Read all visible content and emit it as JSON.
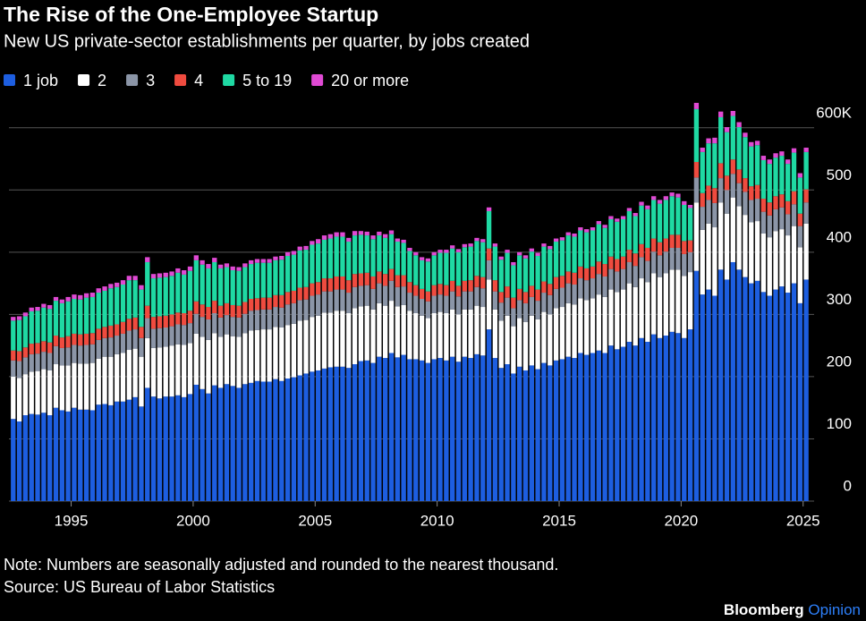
{
  "chart_data": {
    "type": "bar",
    "stacked": true,
    "title": "The Rise of the One-Employee Startup",
    "subtitle": "New US private-sector establishments per quarter, by jobs created",
    "note": "Note: Numbers are seasonally adjusted and rounded to the nearest thousand.",
    "source": "Source: US Bureau of Labor Statistics",
    "brand": "Bloomberg",
    "brand_sub": "Opinion",
    "x": [
      1992.625,
      1992.875,
      1993.125,
      1993.375,
      1993.625,
      1993.875,
      1994.125,
      1994.375,
      1994.625,
      1994.875,
      1995.125,
      1995.375,
      1995.625,
      1995.875,
      1996.125,
      1996.375,
      1996.625,
      1996.875,
      1997.125,
      1997.375,
      1997.625,
      1997.875,
      1998.125,
      1998.375,
      1998.625,
      1998.875,
      1999.125,
      1999.375,
      1999.625,
      1999.875,
      2000.125,
      2000.375,
      2000.625,
      2000.875,
      2001.125,
      2001.375,
      2001.625,
      2001.875,
      2002.125,
      2002.375,
      2002.625,
      2002.875,
      2003.125,
      2003.375,
      2003.625,
      2003.875,
      2004.125,
      2004.375,
      2004.625,
      2004.875,
      2005.125,
      2005.375,
      2005.625,
      2005.875,
      2006.125,
      2006.375,
      2006.625,
      2006.875,
      2007.125,
      2007.375,
      2007.625,
      2007.875,
      2008.125,
      2008.375,
      2008.625,
      2008.875,
      2009.125,
      2009.375,
      2009.625,
      2009.875,
      2010.125,
      2010.375,
      2010.625,
      2010.875,
      2011.125,
      2011.375,
      2011.625,
      2011.875,
      2012.125,
      2012.375,
      2012.625,
      2012.875,
      2013.125,
      2013.375,
      2013.625,
      2013.875,
      2014.125,
      2014.375,
      2014.625,
      2014.875,
      2015.125,
      2015.375,
      2015.625,
      2015.875,
      2016.125,
      2016.375,
      2016.625,
      2016.875,
      2017.125,
      2017.375,
      2017.625,
      2017.875,
      2018.125,
      2018.375,
      2018.625,
      2018.875,
      2019.125,
      2019.375,
      2019.625,
      2019.875,
      2020.125,
      2020.375,
      2020.625,
      2020.875,
      2021.125,
      2021.375,
      2021.625,
      2021.875,
      2022.125,
      2022.375,
      2022.625,
      2022.875,
      2023.125,
      2023.375,
      2023.625,
      2023.875,
      2024.125,
      2024.375,
      2024.625,
      2024.875,
      2025.125
    ],
    "xlim": [
      1992.45,
      2025.45
    ],
    "xticks": [
      1995,
      2000,
      2005,
      2010,
      2015,
      2020,
      2025
    ],
    "ylim": [
      0,
      650
    ],
    "yticks": [
      0,
      100,
      200,
      300,
      400,
      500,
      {
        "value": 600,
        "label": "600K"
      }
    ],
    "grid": true,
    "legend": "top-left",
    "series": [
      {
        "name": "1 job",
        "color": "#1d5ee0",
        "values": [
          132,
          128,
          138,
          140,
          139,
          142,
          138,
          150,
          146,
          144,
          150,
          147,
          147,
          146,
          155,
          156,
          154,
          160,
          160,
          163,
          167,
          152,
          182,
          168,
          165,
          168,
          168,
          170,
          167,
          172,
          187,
          180,
          173,
          186,
          182,
          188,
          185,
          182,
          188,
          190,
          193,
          192,
          192,
          196,
          193,
          197,
          199,
          202,
          205,
          208,
          210,
          213,
          215,
          216,
          216,
          214,
          220,
          225,
          226,
          222,
          232,
          230,
          238,
          231,
          235,
          228,
          228,
          226,
          222,
          228,
          230,
          226,
          232,
          224,
          232,
          230,
          236,
          234,
          276,
          230,
          214,
          220,
          205,
          216,
          210,
          218,
          212,
          222,
          218,
          226,
          228,
          232,
          230,
          238,
          235,
          238,
          242,
          238,
          250,
          244,
          248,
          256,
          250,
          262,
          256,
          268,
          262,
          266,
          272,
          270,
          262,
          276,
          370,
          332,
          340,
          330,
          372,
          356,
          384,
          372,
          360,
          350,
          354,
          336,
          330,
          340,
          345,
          335,
          350,
          318,
          356
        ]
      },
      {
        "name": "2",
        "color": "#ffffff",
        "values": [
          68,
          70,
          66,
          68,
          70,
          70,
          72,
          70,
          72,
          74,
          72,
          74,
          74,
          76,
          74,
          76,
          78,
          76,
          78,
          80,
          78,
          80,
          80,
          78,
          82,
          80,
          82,
          82,
          84,
          82,
          82,
          84,
          86,
          84,
          82,
          80,
          80,
          82,
          82,
          84,
          82,
          84,
          84,
          84,
          86,
          86,
          86,
          88,
          86,
          88,
          88,
          90,
          88,
          90,
          90,
          88,
          90,
          88,
          88,
          86,
          86,
          84,
          84,
          82,
          80,
          78,
          74,
          72,
          72,
          74,
          74,
          76,
          76,
          76,
          76,
          78,
          78,
          78,
          80,
          78,
          76,
          78,
          76,
          78,
          78,
          80,
          80,
          82,
          82,
          84,
          84,
          86,
          86,
          88,
          88,
          88,
          90,
          90,
          90,
          92,
          92,
          94,
          94,
          96,
          96,
          98,
          98,
          100,
          100,
          102,
          100,
          92,
          110,
          104,
          106,
          110,
          108,
          106,
          104,
          102,
          100,
          98,
          96,
          94,
          94,
          94,
          92,
          92,
          92,
          90,
          90
        ]
      },
      {
        "name": "3",
        "color": "#8b95a7",
        "values": [
          26,
          27,
          27,
          28,
          28,
          28,
          28,
          29,
          28,
          29,
          29,
          29,
          30,
          30,
          30,
          30,
          31,
          30,
          31,
          31,
          31,
          30,
          32,
          31,
          31,
          31,
          31,
          32,
          32,
          32,
          32,
          32,
          33,
          32,
          31,
          31,
          31,
          31,
          31,
          32,
          32,
          32,
          32,
          32,
          32,
          33,
          33,
          33,
          33,
          34,
          34,
          34,
          34,
          34,
          34,
          33,
          34,
          33,
          33,
          33,
          32,
          32,
          32,
          31,
          30,
          29,
          28,
          27,
          27,
          28,
          28,
          28,
          29,
          29,
          29,
          29,
          30,
          30,
          31,
          29,
          29,
          29,
          29,
          29,
          30,
          30,
          30,
          31,
          31,
          31,
          31,
          32,
          32,
          32,
          32,
          32,
          33,
          33,
          33,
          33,
          33,
          34,
          34,
          34,
          34,
          35,
          35,
          35,
          35,
          35,
          35,
          32,
          40,
          37,
          38,
          39,
          39,
          38,
          38,
          37,
          37,
          36,
          36,
          35,
          35,
          35,
          35,
          34,
          35,
          34,
          34
        ]
      },
      {
        "name": "4",
        "color": "#ef4b3f",
        "values": [
          16,
          16,
          16,
          17,
          17,
          17,
          17,
          17,
          17,
          18,
          18,
          18,
          18,
          18,
          18,
          18,
          19,
          18,
          19,
          19,
          19,
          18,
          20,
          19,
          19,
          19,
          19,
          19,
          19,
          20,
          20,
          20,
          20,
          20,
          19,
          19,
          19,
          19,
          19,
          19,
          19,
          19,
          19,
          19,
          20,
          20,
          20,
          20,
          20,
          20,
          20,
          21,
          21,
          21,
          21,
          20,
          21,
          20,
          20,
          20,
          19,
          19,
          19,
          19,
          18,
          17,
          17,
          16,
          16,
          17,
          17,
          17,
          17,
          17,
          17,
          18,
          18,
          18,
          19,
          18,
          17,
          18,
          17,
          18,
          18,
          18,
          18,
          18,
          18,
          19,
          19,
          19,
          19,
          19,
          19,
          19,
          20,
          20,
          20,
          20,
          20,
          20,
          20,
          21,
          21,
          21,
          21,
          21,
          21,
          21,
          21,
          19,
          25,
          22,
          23,
          24,
          24,
          23,
          23,
          22,
          22,
          22,
          22,
          21,
          21,
          21,
          21,
          21,
          21,
          20,
          21
        ]
      },
      {
        "name": "5 to 19",
        "color": "#1fd9a3",
        "values": [
          48,
          50,
          50,
          52,
          52,
          54,
          54,
          56,
          55,
          56,
          56,
          56,
          58,
          58,
          58,
          58,
          60,
          60,
          60,
          62,
          60,
          60,
          70,
          62,
          62,
          62,
          62,
          64,
          62,
          64,
          66,
          64,
          62,
          62,
          60,
          58,
          56,
          56,
          56,
          56,
          57,
          56,
          56,
          56,
          57,
          58,
          58,
          60,
          60,
          62,
          62,
          62,
          64,
          64,
          64,
          62,
          62,
          62,
          60,
          60,
          58,
          58,
          56,
          54,
          52,
          50,
          48,
          46,
          48,
          48,
          50,
          52,
          52,
          54,
          54,
          54,
          56,
          56,
          60,
          54,
          52,
          54,
          52,
          54,
          54,
          55,
          54,
          56,
          56,
          57,
          57,
          58,
          58,
          58,
          58,
          58,
          60,
          58,
          60,
          60,
          60,
          62,
          60,
          62,
          62,
          62,
          62,
          62,
          62,
          60,
          58,
          52,
          85,
          66,
          68,
          72,
          74,
          70,
          70,
          68,
          66,
          64,
          64,
          62,
          62,
          62,
          62,
          60,
          62,
          58,
          60
        ]
      },
      {
        "name": "20 or more",
        "color": "#e04ad4",
        "values": [
          6,
          6,
          6,
          6,
          6,
          6,
          6,
          6,
          6,
          7,
          7,
          7,
          7,
          7,
          7,
          7,
          7,
          7,
          7,
          7,
          7,
          7,
          8,
          7,
          7,
          7,
          7,
          7,
          7,
          7,
          8,
          7,
          7,
          7,
          6,
          6,
          6,
          6,
          6,
          6,
          6,
          6,
          6,
          6,
          6,
          6,
          6,
          6,
          6,
          6,
          7,
          7,
          7,
          7,
          7,
          6,
          7,
          6,
          6,
          6,
          6,
          6,
          6,
          5,
          5,
          5,
          5,
          5,
          5,
          5,
          5,
          5,
          5,
          5,
          5,
          5,
          5,
          5,
          6,
          5,
          5,
          5,
          5,
          5,
          5,
          5,
          5,
          5,
          5,
          5,
          5,
          5,
          5,
          5,
          5,
          5,
          5,
          5,
          5,
          5,
          5,
          5,
          5,
          6,
          6,
          6,
          6,
          6,
          6,
          6,
          6,
          5,
          10,
          7,
          8,
          9,
          9,
          8,
          8,
          8,
          7,
          7,
          7,
          7,
          7,
          7,
          7,
          7,
          7,
          7,
          7
        ]
      }
    ]
  }
}
